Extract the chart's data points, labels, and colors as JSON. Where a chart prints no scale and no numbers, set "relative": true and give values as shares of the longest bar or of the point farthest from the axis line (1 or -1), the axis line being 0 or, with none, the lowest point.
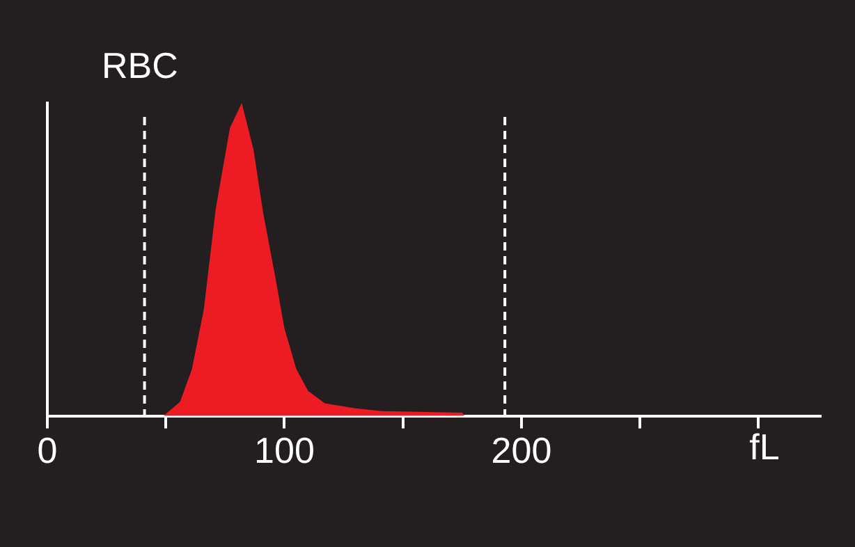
{
  "chart_data": {
    "type": "area",
    "title": "RBC",
    "xlabel": "fL",
    "relative": true,
    "x": [
      49,
      56,
      61,
      66,
      71,
      77,
      82,
      87,
      91,
      96,
      100,
      105,
      110,
      117,
      129,
      141,
      175,
      176
    ],
    "series": [
      {
        "color": "#ed1c24",
        "values": [
          0,
          0.045,
          0.15,
          0.34,
          0.66,
          0.92,
          1,
          0.85,
          0.65,
          0.45,
          0.28,
          0.15,
          0.08,
          0.04,
          0.025,
          0.015,
          0.01,
          0
        ]
      }
    ],
    "xlim": [
      0,
      326
    ],
    "xticks": [
      0,
      {
        "value": 50,
        "label": null
      },
      100,
      {
        "value": 150,
        "label": null
      },
      200,
      {
        "value": 250,
        "label": null
      },
      {
        "value": 300,
        "label": null
      }
    ],
    "ref_lines": [
      {
        "axis": "x",
        "value": 41,
        "color": "#ffffff",
        "line_style": "dashed"
      },
      {
        "axis": "x",
        "value": 193,
        "color": "#ffffff",
        "line_style": "dashed"
      }
    ],
    "grid": false,
    "legend": false
  }
}
